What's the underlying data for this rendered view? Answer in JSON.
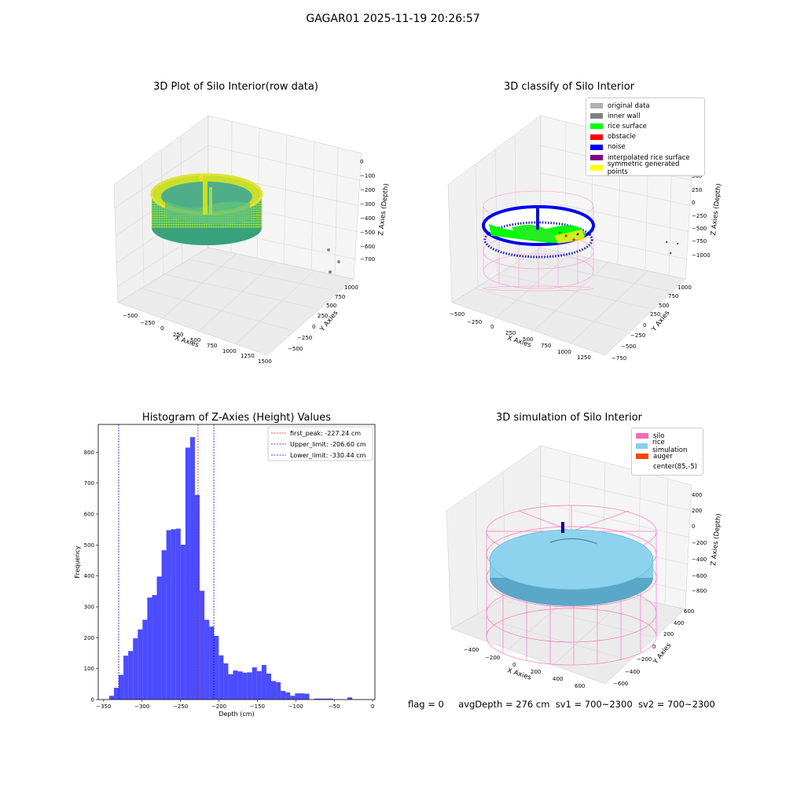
{
  "suptitle": "GAGAR01 2025-11-19 20:26:57",
  "panels": {
    "raw": {
      "title": "3D Plot of Silo Interior(row data)",
      "x_label": "X Axies",
      "y_label": "Y Axies",
      "z_label": "Z Axies (Depth)",
      "x_ticks": [
        "-500",
        "-250",
        "0",
        "250",
        "500",
        "750",
        "1000",
        "1250",
        "1500"
      ],
      "y_ticks": [
        "-500",
        "-250",
        "0",
        "250",
        "500",
        "750",
        "1000"
      ],
      "z_ticks": [
        "0",
        "-100",
        "-200",
        "-300",
        "-400",
        "-500",
        "-600",
        "-700"
      ]
    },
    "classify": {
      "title": "3D classify of Silo Interior",
      "x_label": "X Axies",
      "y_label": "Y Axies",
      "z_label": "Z Axies (Depth)",
      "x_ticks": [
        "-500",
        "-250",
        "0",
        "250",
        "500",
        "750",
        "1000",
        "1250"
      ],
      "y_ticks": [
        "-750",
        "-500",
        "-250",
        "0",
        "250",
        "500",
        "750",
        "1000"
      ],
      "z_ticks": [
        "750",
        "500",
        "250",
        "0",
        "-250",
        "-500",
        "-750",
        "-1000"
      ],
      "legend": [
        {
          "label": "original data",
          "color": "#b0b0b0"
        },
        {
          "label": "inner wall",
          "color": "#808080"
        },
        {
          "label": "rice surface",
          "color": "#00ff00"
        },
        {
          "label": "obstacle",
          "color": "#ff0000"
        },
        {
          "label": "noise",
          "color": "#0000ff"
        },
        {
          "label": "interpolated rice surface",
          "color": "#800080"
        },
        {
          "label": "symmetric generated points",
          "color": "#ffff00"
        }
      ]
    },
    "simulation": {
      "title": "3D simulation of Silo Interior",
      "x_label": "X Axies",
      "y_label": "Y Axies",
      "z_label": "Z Axies (Depth)",
      "x_ticks": [
        "-400",
        "-200",
        "0",
        "200",
        "400",
        "600"
      ],
      "y_ticks": [
        "-600",
        "-400",
        "-200",
        "0",
        "200",
        "400",
        "600"
      ],
      "z_ticks": [
        "400",
        "200",
        "0",
        "-200",
        "-400",
        "-600",
        "-800"
      ],
      "legend": [
        {
          "label": "silo",
          "color": "#ff69b4"
        },
        {
          "label": "rice simulation",
          "color": "#87ceeb"
        },
        {
          "label": "auger",
          "color": "#ff4500"
        },
        {
          "label": "center(85,-5)",
          "color": ""
        }
      ]
    }
  },
  "status": {
    "flag": "flag = 0",
    "avg_depth": "avgDepth = 276 cm",
    "sv1": "sv1 = 700~2300",
    "sv2": "sv2 = 700~2300"
  },
  "chart_data": [
    {
      "type": "bar",
      "title": "Histogram of Z-Axies (Height) Values",
      "xlabel": "Depth (cm)",
      "ylabel": "Frequency",
      "xlim": [
        -357,
        3
      ],
      "ylim": [
        0,
        890
      ],
      "x_ticks": [
        -350,
        -300,
        -250,
        -200,
        -150,
        -100,
        -50,
        0
      ],
      "y_ticks": [
        0,
        100,
        200,
        300,
        400,
        500,
        600,
        700,
        800
      ],
      "bar_color": "#0000ff",
      "bin_width": 6.2,
      "bins": [
        [
          -342.8,
          12
        ],
        [
          -336.6,
          38
        ],
        [
          -330.4,
          80
        ],
        [
          -324.2,
          142
        ],
        [
          -318.0,
          157
        ],
        [
          -311.8,
          198
        ],
        [
          -305.6,
          227
        ],
        [
          -299.4,
          258
        ],
        [
          -293.2,
          330
        ],
        [
          -287.0,
          338
        ],
        [
          -280.8,
          398
        ],
        [
          -274.6,
          483
        ],
        [
          -268.4,
          548
        ],
        [
          -262.2,
          551
        ],
        [
          -256.0,
          553
        ],
        [
          -249.8,
          501
        ],
        [
          -243.6,
          815
        ],
        [
          -237.4,
          849
        ],
        [
          -231.2,
          662
        ],
        [
          -225.0,
          352
        ],
        [
          -218.8,
          258
        ],
        [
          -212.6,
          236
        ],
        [
          -206.4,
          206
        ],
        [
          -200.2,
          143
        ],
        [
          -194.0,
          117
        ],
        [
          -187.8,
          82
        ],
        [
          -181.6,
          94
        ],
        [
          -175.4,
          91
        ],
        [
          -169.2,
          87
        ],
        [
          -163.0,
          88
        ],
        [
          -156.8,
          104
        ],
        [
          -150.6,
          92
        ],
        [
          -144.4,
          112
        ],
        [
          -138.2,
          84
        ],
        [
          -132.0,
          60
        ],
        [
          -125.8,
          56
        ],
        [
          -119.6,
          28
        ],
        [
          -113.4,
          23
        ],
        [
          -107.2,
          12
        ],
        [
          -101.0,
          20
        ],
        [
          -94.8,
          20
        ],
        [
          -88.6,
          19
        ],
        [
          -82.4,
          0
        ],
        [
          -76.2,
          3
        ],
        [
          -70.0,
          3
        ],
        [
          -63.8,
          3
        ],
        [
          -57.6,
          3
        ],
        [
          -51.4,
          0
        ],
        [
          -45.2,
          0
        ],
        [
          -39.0,
          0
        ],
        [
          -32.8,
          7
        ]
      ],
      "vlines": [
        {
          "name": "first_peak: -227.24 cm",
          "x": -227.24,
          "color": "#ff0000"
        },
        {
          "name": "Upper_limit: -206.60 cm",
          "x": -206.6,
          "color": "#0000ff"
        },
        {
          "name": "Lower_limit: -330.44 cm",
          "x": -330.44,
          "color": "#0000ff"
        }
      ],
      "legend_position": "upper right"
    }
  ]
}
